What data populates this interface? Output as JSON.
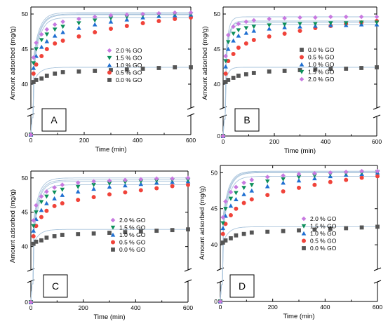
{
  "colors": {
    "0.0 % GO": "#555555",
    "0.5 % GO": "#f0433a",
    "1.0 % GO": "#1f6fd1",
    "1.5 % GO": "#0d8f5a",
    "2.0 % GO": "#c779e0",
    "fit_line": "#a9c4dc",
    "axis": "#000000"
  },
  "chart_data": [
    {
      "type": "scatter",
      "panel_label": "A",
      "xlabel": "Time (min)",
      "ylabel": "Amount adsorbed (mg/g)",
      "xlim": [
        0,
        600
      ],
      "ylim_lower": [
        0,
        2
      ],
      "ylim_upper": [
        37,
        51
      ],
      "axis_break": true,
      "x_ticks": [
        0,
        200,
        400,
        600
      ],
      "y_ticks": [
        0,
        40,
        45,
        50
      ],
      "legend_placement": "center-right",
      "legend_order": [
        "2.0 % GO",
        "1.5 % GO",
        "1.0 % GO",
        "0.5 % GO",
        "0.0 % GO"
      ],
      "x": [
        0,
        10,
        20,
        40,
        60,
        90,
        120,
        180,
        240,
        300,
        360,
        420,
        480,
        540,
        600
      ],
      "series": [
        {
          "name": "0.0 % GO",
          "marker": "square",
          "values": [
            0,
            40.3,
            40.6,
            40.8,
            41.2,
            41.5,
            41.7,
            41.8,
            41.9,
            42.0,
            42.1,
            42.2,
            42.3,
            42.4,
            42.4
          ]
        },
        {
          "name": "0.5 % GO",
          "marker": "circle",
          "values": [
            0,
            41.5,
            42.8,
            44.0,
            45.0,
            45.8,
            46.2,
            46.8,
            47.4,
            47.9,
            48.3,
            48.7,
            49.0,
            49.3,
            49.5
          ]
        },
        {
          "name": "1.0 % GO",
          "marker": "triangle-up",
          "values": [
            0,
            42.3,
            44.0,
            45.3,
            46.1,
            46.9,
            47.4,
            48.0,
            48.5,
            48.9,
            49.2,
            49.5,
            49.7,
            49.8,
            49.9
          ]
        },
        {
          "name": "1.5 % GO",
          "marker": "triangle-down",
          "values": [
            0,
            43.0,
            45.0,
            46.3,
            47.1,
            47.8,
            48.2,
            48.7,
            49.1,
            49.4,
            49.6,
            49.8,
            49.9,
            50.0,
            50.0
          ]
        },
        {
          "name": "2.0 % GO",
          "marker": "diamond",
          "values": [
            0,
            43.8,
            45.9,
            47.1,
            47.8,
            48.5,
            48.9,
            49.3,
            49.6,
            49.8,
            49.9,
            50.0,
            50.1,
            50.2,
            50.2
          ]
        }
      ]
    },
    {
      "type": "scatter",
      "panel_label": "B",
      "xlabel": "Time (min)",
      "ylabel": "Amount adsorbed (mg/g)",
      "xlim": [
        0,
        600
      ],
      "ylim_lower": [
        0,
        2
      ],
      "ylim_upper": [
        37,
        51
      ],
      "axis_break": true,
      "x_ticks": [
        0,
        200,
        400,
        600
      ],
      "y_ticks": [
        0,
        40,
        45,
        50
      ],
      "legend_placement": "center-right",
      "legend_order": [
        "0.0 % GO",
        "0.5 % GO",
        "1.0 % GO",
        "1.5 % GO",
        "2.0 % GO"
      ],
      "x": [
        0,
        10,
        20,
        40,
        60,
        90,
        120,
        180,
        240,
        300,
        360,
        420,
        480,
        540,
        600
      ],
      "series": [
        {
          "name": "0.0 % GO",
          "marker": "square",
          "values": [
            0,
            40.3,
            40.6,
            40.9,
            41.2,
            41.4,
            41.6,
            41.8,
            41.9,
            42.0,
            42.1,
            42.2,
            42.2,
            42.3,
            42.4
          ]
        },
        {
          "name": "0.5 % GO",
          "marker": "circle",
          "values": [
            0,
            41.5,
            43.3,
            44.3,
            45.2,
            45.8,
            46.3,
            46.8,
            47.2,
            47.6,
            48.0,
            48.3,
            48.6,
            48.8,
            49.0
          ]
        },
        {
          "name": "1.0 % GO",
          "marker": "triangle-up",
          "values": [
            0,
            42.5,
            45.0,
            46.2,
            46.9,
            47.3,
            47.6,
            47.9,
            48.1,
            48.2,
            48.3,
            48.4,
            48.4,
            48.5,
            48.5
          ]
        },
        {
          "name": "1.5 % GO",
          "marker": "triangle-down",
          "values": [
            0,
            43.3,
            46.0,
            47.2,
            47.7,
            48.0,
            48.2,
            48.4,
            48.5,
            48.6,
            48.6,
            48.7,
            48.7,
            48.8,
            48.8
          ]
        },
        {
          "name": "2.0 % GO",
          "marker": "diamond",
          "values": [
            0,
            44.0,
            47.0,
            48.2,
            48.6,
            48.9,
            49.1,
            49.3,
            49.4,
            49.5,
            49.5,
            49.6,
            49.6,
            49.6,
            49.6
          ]
        }
      ]
    },
    {
      "type": "scatter",
      "panel_label": "C",
      "xlabel": "Time (min)",
      "ylabel": "Amount adsorbed (mg/g)",
      "xlim": [
        0,
        600
      ],
      "ylim_lower": [
        0,
        2
      ],
      "ylim_upper": [
        37,
        51
      ],
      "axis_break": true,
      "x_ticks": [
        0,
        200,
        400,
        600
      ],
      "y_ticks": [
        0,
        40,
        45,
        50
      ],
      "legend_placement": "center-right",
      "legend_order": [
        "2.0 % GO",
        "1.5 % GO",
        "1.0 % GO",
        "0.5 % GO",
        "0.0 % GO"
      ],
      "x": [
        0,
        10,
        20,
        40,
        60,
        90,
        120,
        180,
        240,
        300,
        360,
        420,
        480,
        540,
        600
      ],
      "series": [
        {
          "name": "0.0 % GO",
          "marker": "square",
          "values": [
            0,
            40.4,
            40.7,
            40.9,
            41.3,
            41.5,
            41.7,
            41.8,
            41.9,
            42.0,
            42.1,
            42.2,
            42.3,
            42.4,
            42.5
          ]
        },
        {
          "name": "0.5 % GO",
          "marker": "circle",
          "values": [
            0,
            41.5,
            43.0,
            44.3,
            45.2,
            45.9,
            46.3,
            46.8,
            47.2,
            47.6,
            47.9,
            48.2,
            48.5,
            48.8,
            49.0
          ]
        },
        {
          "name": "1.0 % GO",
          "marker": "triangle-up",
          "values": [
            0,
            42.3,
            44.0,
            45.3,
            46.3,
            47.0,
            47.5,
            48.0,
            48.4,
            48.7,
            48.9,
            49.1,
            49.3,
            49.4,
            49.5
          ]
        },
        {
          "name": "1.5 % GO",
          "marker": "triangle-down",
          "values": [
            0,
            43.0,
            45.0,
            46.5,
            47.3,
            47.9,
            48.3,
            48.7,
            49.0,
            49.2,
            49.4,
            49.5,
            49.6,
            49.7,
            49.7
          ]
        },
        {
          "name": "2.0 % GO",
          "marker": "diamond",
          "values": [
            0,
            43.8,
            46.0,
            47.3,
            48.0,
            48.6,
            49.0,
            49.3,
            49.5,
            49.6,
            49.7,
            49.8,
            49.9,
            49.9,
            50.0
          ]
        }
      ]
    },
    {
      "type": "scatter",
      "panel_label": "D",
      "xlabel": "Time (min)",
      "ylabel": "Amount adsorbed (mg/g)",
      "xlim": [
        0,
        600
      ],
      "ylim_lower": [
        0,
        2
      ],
      "ylim_upper": [
        37,
        51
      ],
      "axis_break": true,
      "x_ticks": [
        0,
        200,
        400,
        600
      ],
      "y_ticks": [
        0,
        40,
        45,
        50
      ],
      "legend_placement": "center-right",
      "legend_order": [
        "2.0 % GO",
        "1.5 % GO",
        "1.0 % GO",
        "0.5 % GO",
        "0.0 % GO"
      ],
      "x": [
        0,
        10,
        20,
        40,
        60,
        90,
        120,
        180,
        240,
        300,
        360,
        420,
        480,
        540,
        600
      ],
      "series": [
        {
          "name": "0.0 % GO",
          "marker": "square",
          "values": [
            0,
            40.3,
            40.6,
            40.9,
            41.3,
            41.5,
            41.7,
            41.8,
            41.9,
            42.0,
            42.1,
            42.2,
            42.3,
            42.4,
            42.5
          ]
        },
        {
          "name": "0.5 % GO",
          "marker": "circle",
          "values": [
            0,
            41.5,
            42.9,
            44.1,
            45.0,
            45.8,
            46.3,
            46.9,
            47.4,
            47.9,
            48.3,
            48.7,
            49.0,
            49.3,
            49.5
          ]
        },
        {
          "name": "1.0 % GO",
          "marker": "triangle-up",
          "values": [
            0,
            42.3,
            44.0,
            45.4,
            46.3,
            47.0,
            47.5,
            48.1,
            48.6,
            48.9,
            49.2,
            49.5,
            49.7,
            49.8,
            50.0
          ]
        },
        {
          "name": "1.5 % GO",
          "marker": "triangle-down",
          "values": [
            0,
            43.0,
            45.0,
            46.4,
            47.2,
            47.9,
            48.3,
            48.8,
            49.1,
            49.4,
            49.6,
            49.8,
            49.9,
            50.0,
            50.1
          ]
        },
        {
          "name": "2.0 % GO",
          "marker": "diamond",
          "values": [
            0,
            43.8,
            46.0,
            47.3,
            48.0,
            48.6,
            49.0,
            49.4,
            49.6,
            49.8,
            49.9,
            50.0,
            50.1,
            50.2,
            50.2
          ]
        }
      ]
    }
  ]
}
